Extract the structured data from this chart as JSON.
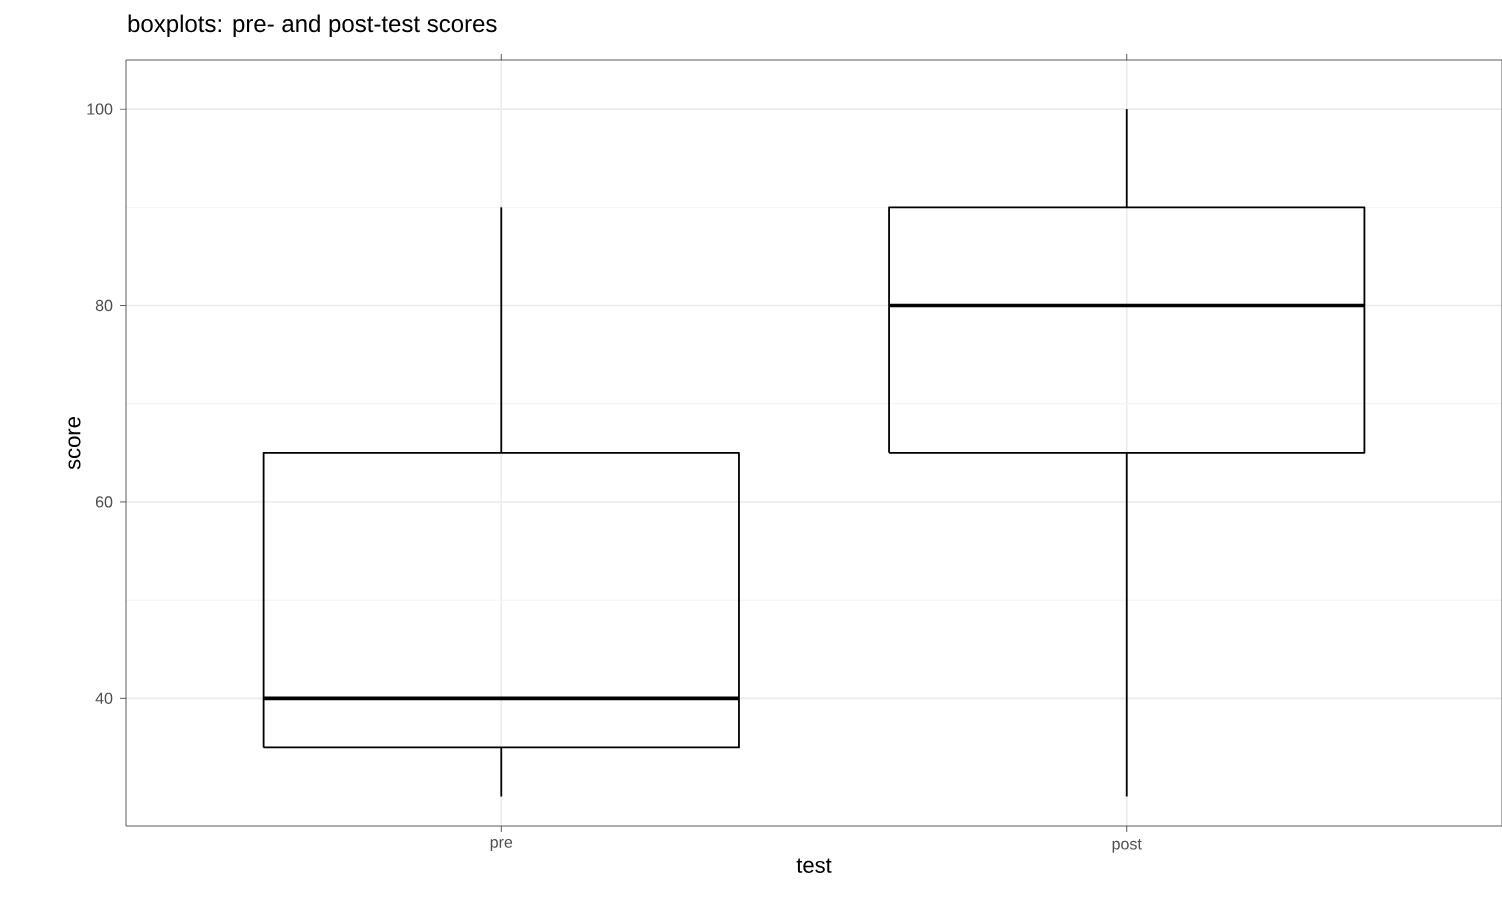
{
  "chart_data": {
    "type": "box",
    "title": "boxplots: pre- and post-test scores",
    "xlabel": "test",
    "ylabel": "score",
    "categories": [
      "pre",
      "post"
    ],
    "boxes": [
      {
        "low": 30,
        "q1": 35,
        "median": 40,
        "q3": 65,
        "high": 90
      },
      {
        "low": 30,
        "q1": 65,
        "median": 80,
        "q3": 90,
        "high": 100
      }
    ],
    "ylim": [
      27,
      105
    ],
    "yticks": [
      40,
      60,
      80,
      100
    ],
    "grid": true
  }
}
